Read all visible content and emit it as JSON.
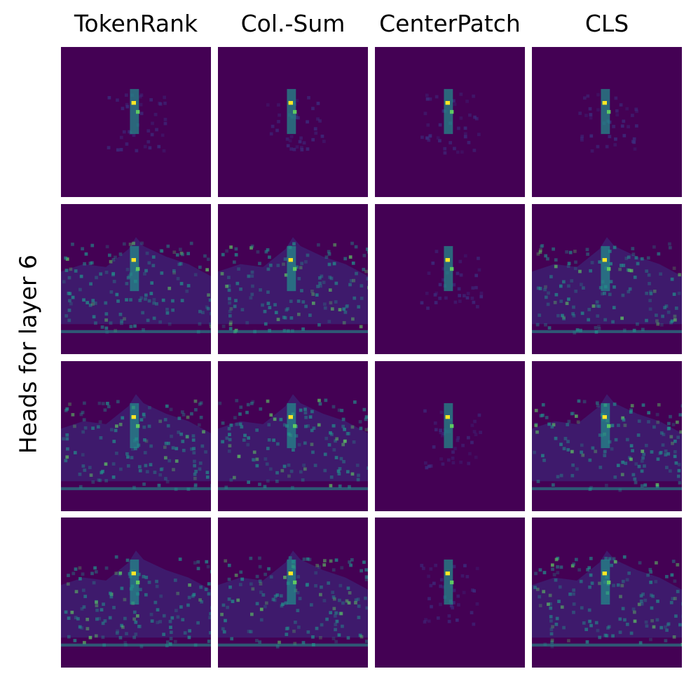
{
  "chart_data": {
    "type": "heatmap",
    "columns": [
      "TokenRank",
      "Col.-Sum",
      "CenterPatch",
      "CLS"
    ],
    "row_axis_label": "Heads for layer 6",
    "rows": 4,
    "colormap": "viridis",
    "colors": {
      "background": "#440154",
      "low": "#3b2f7f",
      "mid": "#21918c",
      "high": "#5ec962",
      "peak": "#fde725"
    },
    "axes_visible": false,
    "grid": false
  }
}
